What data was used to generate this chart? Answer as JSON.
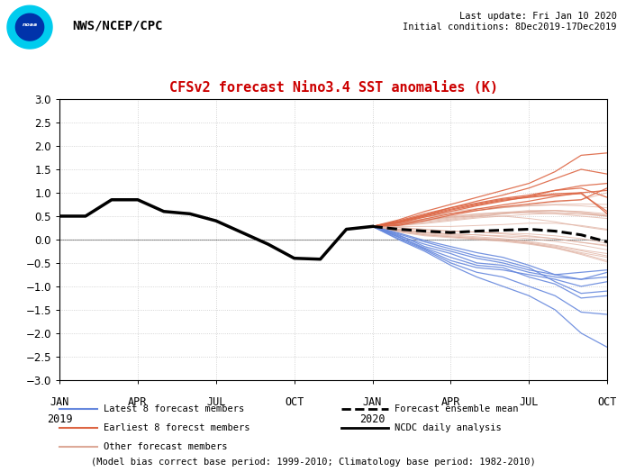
{
  "title": "CFSv2 forecast Nino3.4 SST anomalies (K)",
  "title_color": "#cc0000",
  "header_text": "NWS/NCEP/CPC",
  "update_text": "Last update: Fri Jan 10 2020",
  "init_text": "Initial conditions: 8Dec2019-17Dec2019",
  "footnote": "(Model bias correct base period: 1999-2010; Climatology base period: 1982-2010)",
  "ylim": [
    -3,
    3
  ],
  "yticks": [
    -3,
    -2.5,
    -2,
    -1.5,
    -1,
    -0.5,
    0,
    0.5,
    1,
    1.5,
    2,
    2.5,
    3
  ],
  "background_color": "#ffffff",
  "grid_color": "#c8c8c8",
  "ncdc_x": [
    0,
    1,
    2,
    3,
    4,
    5,
    6,
    7,
    8,
    9,
    10,
    11,
    12
  ],
  "ncdc_y": [
    0.5,
    0.5,
    0.85,
    0.85,
    0.6,
    0.55,
    0.4,
    0.15,
    -0.1,
    -0.4,
    -0.42,
    0.22,
    0.28
  ],
  "ensemble_mean_x": [
    12,
    13,
    14,
    15,
    16,
    17,
    18,
    19,
    20,
    21
  ],
  "ensemble_mean_y": [
    0.28,
    0.22,
    0.18,
    0.15,
    0.18,
    0.2,
    0.22,
    0.18,
    0.1,
    -0.05
  ],
  "latest8_x": [
    12,
    13,
    14,
    15,
    16,
    17,
    18,
    19,
    20,
    21
  ],
  "latest8_members": [
    [
      0.28,
      0.1,
      -0.15,
      -0.3,
      -0.5,
      -0.55,
      -0.7,
      -0.8,
      -0.85,
      -0.7
    ],
    [
      0.28,
      0.05,
      -0.2,
      -0.45,
      -0.6,
      -0.65,
      -0.75,
      -0.85,
      -1.0,
      -0.9
    ],
    [
      0.28,
      0.08,
      -0.1,
      -0.25,
      -0.4,
      -0.5,
      -0.65,
      -0.75,
      -0.7,
      -0.65
    ],
    [
      0.28,
      0.12,
      -0.05,
      -0.2,
      -0.35,
      -0.45,
      -0.6,
      -0.9,
      -1.15,
      -1.1
    ],
    [
      0.28,
      0.06,
      -0.18,
      -0.38,
      -0.55,
      -0.6,
      -0.8,
      -0.95,
      -1.25,
      -1.2
    ],
    [
      0.28,
      0.02,
      -0.22,
      -0.5,
      -0.7,
      -0.8,
      -1.0,
      -1.2,
      -1.55,
      -1.6
    ],
    [
      0.28,
      0.14,
      -0.02,
      -0.15,
      -0.28,
      -0.38,
      -0.55,
      -0.75,
      -0.85,
      -0.8
    ],
    [
      0.28,
      0.0,
      -0.25,
      -0.55,
      -0.8,
      -1.0,
      -1.2,
      -1.5,
      -2.0,
      -2.3
    ]
  ],
  "earliest8_x": [
    12,
    13,
    14,
    15,
    16,
    17,
    18,
    19,
    20,
    21
  ],
  "earliest8_members": [
    [
      0.28,
      0.42,
      0.6,
      0.75,
      0.9,
      1.05,
      1.2,
      1.45,
      1.8,
      1.85
    ],
    [
      0.28,
      0.38,
      0.52,
      0.68,
      0.82,
      0.95,
      1.1,
      1.3,
      1.5,
      1.4
    ],
    [
      0.28,
      0.35,
      0.48,
      0.6,
      0.72,
      0.82,
      0.92,
      1.05,
      1.15,
      1.2
    ],
    [
      0.28,
      0.32,
      0.44,
      0.55,
      0.65,
      0.74,
      0.82,
      0.92,
      1.0,
      1.05
    ],
    [
      0.28,
      0.4,
      0.55,
      0.68,
      0.78,
      0.88,
      0.95,
      1.05,
      1.1,
      0.9
    ],
    [
      0.28,
      0.36,
      0.5,
      0.63,
      0.74,
      0.84,
      0.9,
      0.95,
      0.98,
      0.6
    ],
    [
      0.28,
      0.38,
      0.52,
      0.65,
      0.76,
      0.86,
      0.92,
      0.98,
      1.0,
      0.55
    ],
    [
      0.28,
      0.3,
      0.4,
      0.52,
      0.62,
      0.7,
      0.76,
      0.82,
      0.85,
      1.1
    ]
  ],
  "other_x": [
    12,
    13,
    14,
    15,
    16,
    17,
    18,
    19,
    20,
    21
  ],
  "other_members": [
    [
      0.28,
      0.3,
      0.36,
      0.42,
      0.48,
      0.55,
      0.6,
      0.62,
      0.6,
      0.55
    ],
    [
      0.28,
      0.34,
      0.42,
      0.48,
      0.5,
      0.5,
      0.45,
      0.38,
      0.28,
      0.2
    ],
    [
      0.28,
      0.25,
      0.2,
      0.18,
      0.16,
      0.12,
      0.08,
      0.02,
      -0.06,
      -0.12
    ],
    [
      0.28,
      0.32,
      0.38,
      0.44,
      0.5,
      0.55,
      0.6,
      0.62,
      0.58,
      0.52
    ],
    [
      0.28,
      0.2,
      0.14,
      0.1,
      0.06,
      0.02,
      -0.04,
      -0.12,
      -0.22,
      -0.3
    ],
    [
      0.28,
      0.36,
      0.44,
      0.5,
      0.55,
      0.58,
      0.58,
      0.55,
      0.5,
      0.45
    ],
    [
      0.28,
      0.26,
      0.22,
      0.18,
      0.16,
      0.14,
      0.12,
      0.08,
      0.02,
      -0.08
    ],
    [
      0.28,
      0.33,
      0.4,
      0.46,
      0.52,
      0.56,
      0.58,
      0.58,
      0.55,
      0.5
    ],
    [
      0.28,
      0.18,
      0.1,
      0.06,
      0.02,
      -0.02,
      -0.08,
      -0.16,
      -0.28,
      -0.38
    ],
    [
      0.28,
      0.28,
      0.28,
      0.28,
      0.3,
      0.32,
      0.35,
      0.35,
      0.3,
      0.22
    ],
    [
      0.28,
      0.35,
      0.42,
      0.48,
      0.54,
      0.58,
      0.62,
      0.62,
      0.58,
      0.5
    ],
    [
      0.28,
      0.22,
      0.16,
      0.12,
      0.1,
      0.08,
      0.06,
      0.02,
      -0.06,
      -0.14
    ],
    [
      0.28,
      0.38,
      0.48,
      0.56,
      0.62,
      0.68,
      0.74,
      0.8,
      0.85,
      1.0
    ],
    [
      0.28,
      0.2,
      0.12,
      0.08,
      0.04,
      0.0,
      -0.06,
      -0.14,
      -0.24,
      -0.35
    ],
    [
      0.28,
      0.38,
      0.48,
      0.56,
      0.62,
      0.68,
      0.72,
      0.75,
      0.76,
      0.75
    ],
    [
      0.28,
      0.16,
      0.08,
      0.04,
      0.0,
      -0.04,
      -0.1,
      -0.18,
      -0.3,
      -0.45
    ],
    [
      0.28,
      0.3,
      0.34,
      0.4,
      0.46,
      0.5,
      0.54,
      0.56,
      0.54,
      0.5
    ],
    [
      0.28,
      0.22,
      0.16,
      0.12,
      0.1,
      0.06,
      0.02,
      -0.04,
      -0.12,
      -0.22
    ],
    [
      0.28,
      0.4,
      0.52,
      0.6,
      0.66,
      0.7,
      0.72,
      0.74,
      0.72,
      0.68
    ],
    [
      0.28,
      0.18,
      0.1,
      0.06,
      0.02,
      -0.02,
      -0.08,
      -0.18,
      -0.32,
      -0.48
    ]
  ],
  "xtick_positions": [
    0,
    3,
    6,
    9,
    12,
    15,
    18,
    21
  ],
  "xtick_labels_line1": [
    "JAN",
    "APR",
    "JUL",
    "OCT",
    "JAN",
    "APR",
    "JUL",
    "OCT"
  ],
  "xtick_labels_line2": [
    "2019",
    "",
    "",
    "",
    "2020",
    "",
    "",
    ""
  ],
  "legend_blue_color": "#6688dd",
  "legend_red_color": "#dd6644",
  "legend_pink_color": "#ddaa99",
  "ensemble_color": "#000000",
  "ncdc_color": "#000000"
}
